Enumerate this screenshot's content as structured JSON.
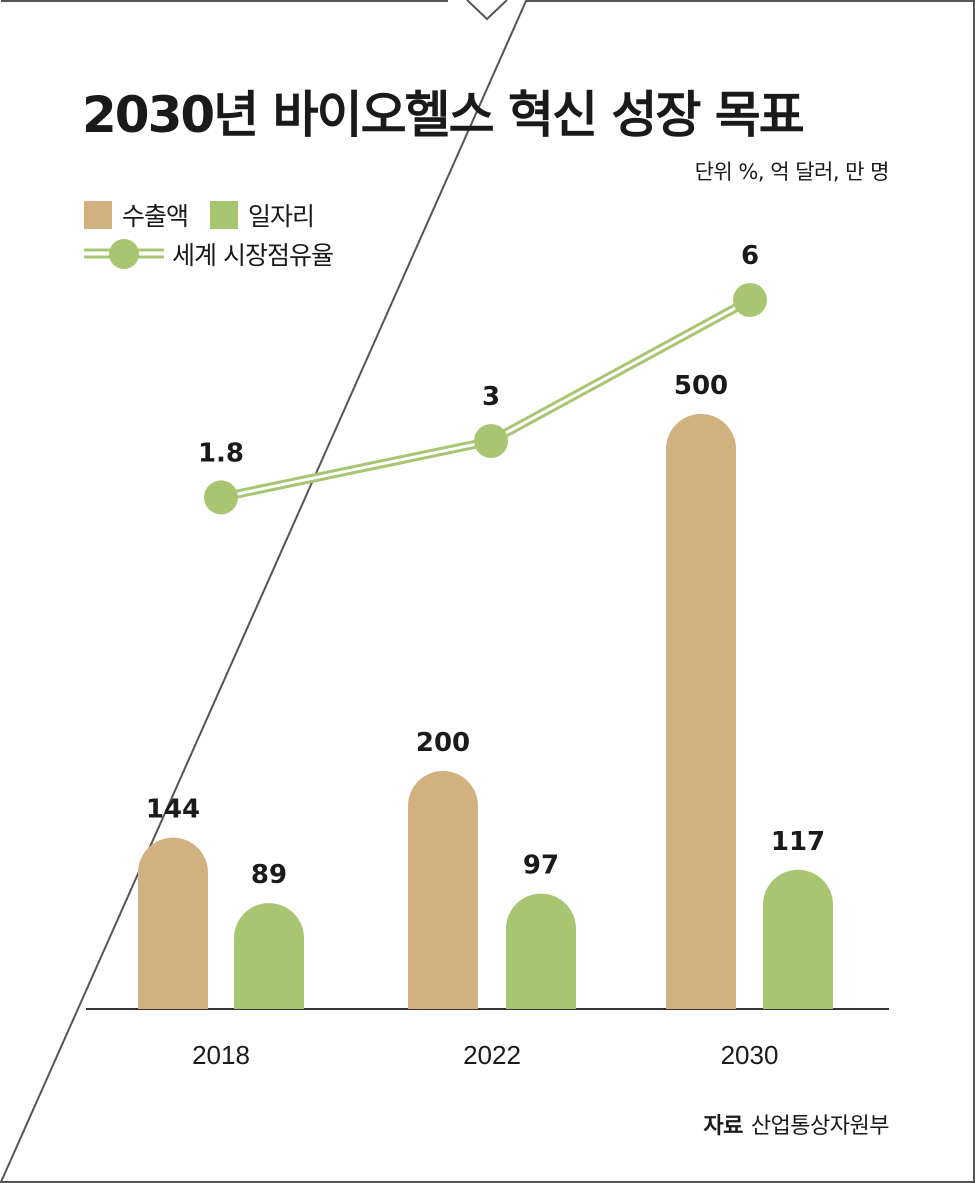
{
  "title": "2030년 바이오헬스 혁신 성장 목표",
  "unit_note": "단위 %, 억 달러, 만 명",
  "source": {
    "label": "자료",
    "value": "산업통상자원부"
  },
  "colors": {
    "export": "#d0b17f",
    "jobs": "#a8c572",
    "share": "#a8c572",
    "frame": "#555555",
    "axis": "#333333"
  },
  "chart_data": {
    "type": "bar",
    "categories": [
      "2018",
      "2022",
      "2030"
    ],
    "series": [
      {
        "name": "수출액",
        "kind": "bar",
        "values": [
          144,
          200,
          500
        ]
      },
      {
        "name": "일자리",
        "kind": "bar",
        "values": [
          89,
          97,
          117
        ]
      },
      {
        "name": "세계 시장점유율",
        "kind": "line",
        "values": [
          1.8,
          3,
          6
        ]
      }
    ],
    "value_labels": {
      "export": [
        "144",
        "200",
        "500"
      ],
      "jobs": [
        "89",
        "97",
        "117"
      ],
      "share": [
        "1.8",
        "3",
        "6"
      ]
    },
    "legend": "top-left",
    "grid": false
  }
}
